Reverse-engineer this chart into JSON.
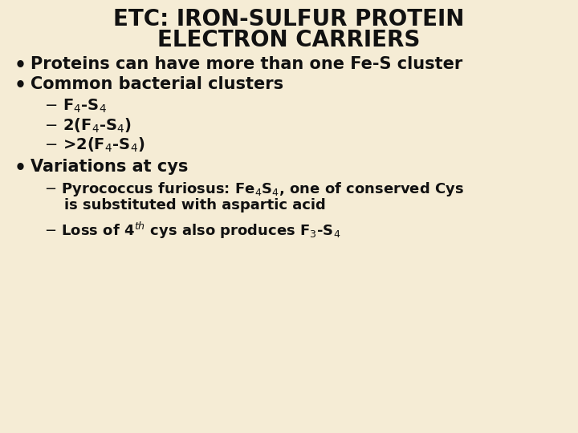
{
  "title_line1": "ETC: IRON-SULFUR PROTEIN",
  "title_line2": "ELECTRON CARRIERS",
  "background_color": "#f5ecd5",
  "text_color": "#111111",
  "title_fontsize": 20,
  "body_fontsize": 15,
  "sub_fontsize": 14,
  "sub2_fontsize": 13,
  "bullet1": "Proteins can have more than one Fe-S cluster",
  "bullet2": "Common bacterial clusters",
  "sub_items": [
    "$-$ F$_4$-S$_4$",
    "$-$ 2(F$_4$-S$_4$)",
    "$-$ >2(F$_4$-S$_4$)"
  ],
  "bullet3": "Variations at cys",
  "sub2_line1": "$-$ Pyrococcus furiosus: Fe$_4$S$_4$, one of conserved Cys",
  "sub2_line1b": "    is substituted with aspartic acid",
  "sub2_line2": "$-$ Loss of 4$^{th}$ cys also produces F$_3$-S$_4$"
}
